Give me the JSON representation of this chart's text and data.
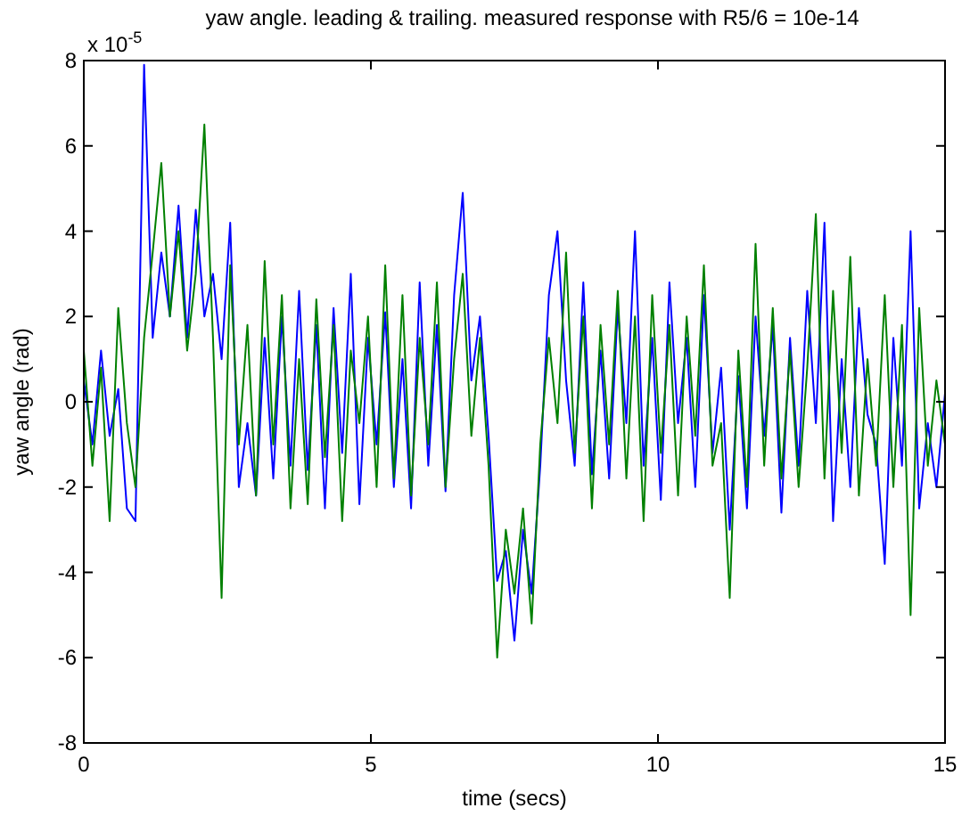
{
  "chart_data": {
    "type": "line",
    "title": "yaw angle. leading & trailing. measured response with R5/6 = 10e-14",
    "xlabel": "time (secs)",
    "ylabel": "yaw angle (rad)",
    "annotations": [
      "x 10$^{-5}$"
    ],
    "x": [
      0,
      0.15,
      0.3,
      0.45,
      0.6,
      0.75,
      0.9,
      1.05,
      1.2,
      1.35,
      1.5,
      1.65,
      1.8,
      1.95,
      2.1,
      2.25,
      2.4,
      2.55,
      2.7,
      2.85,
      3,
      3.15,
      3.3,
      3.45,
      3.6,
      3.75,
      3.9,
      4.05,
      4.2,
      4.35,
      4.5,
      4.65,
      4.8,
      4.95,
      5.1,
      5.25,
      5.4,
      5.55,
      5.7,
      5.85,
      6,
      6.15,
      6.3,
      6.45,
      6.6,
      6.75,
      6.9,
      7.05,
      7.2,
      7.35,
      7.5,
      7.65,
      7.8,
      7.95,
      8.1,
      8.25,
      8.4,
      8.55,
      8.7,
      8.85,
      9,
      9.15,
      9.3,
      9.45,
      9.6,
      9.75,
      9.9,
      10.05,
      10.2,
      10.35,
      10.5,
      10.65,
      10.8,
      10.95,
      11.1,
      11.25,
      11.4,
      11.55,
      11.7,
      11.85,
      12,
      12.15,
      12.3,
      12.45,
      12.6,
      12.75,
      12.9,
      13.05,
      13.2,
      13.35,
      13.5,
      13.65,
      13.8,
      13.95,
      14.1,
      14.25,
      14.4,
      14.55,
      14.7,
      14.85,
      15
    ],
    "series": [
      {
        "color": "#0000ff",
        "values": [
          0.5,
          -1,
          1.2,
          -0.8,
          0.3,
          -2.5,
          -2.8,
          7.9,
          1.5,
          3.5,
          2.0,
          4.6,
          1.5,
          4.5,
          2.0,
          3.0,
          1.0,
          4.2,
          -2.0,
          -0.5,
          -2.2,
          1.5,
          -1.8,
          2.0,
          -1.5,
          2.6,
          -1.6,
          1.8,
          -2.5,
          2.2,
          -1.2,
          3.0,
          -2.4,
          1.5,
          -1.0,
          2.1,
          -2.0,
          1.0,
          -2.5,
          2.8,
          -1.5,
          1.8,
          -2.1,
          2.5,
          4.9,
          0.5,
          2.0,
          -0.8,
          -4.2,
          -3.5,
          -5.6,
          -3.0,
          -4.5,
          -1.5,
          2.5,
          4.0,
          0.5,
          -1.5,
          2.8,
          -1.7,
          1.2,
          -1.8,
          2.2,
          -0.5,
          4.0,
          -1.5,
          1.5,
          -2.3,
          2.8,
          -0.5,
          1.5,
          -2.0,
          2.5,
          -1.2,
          0.8,
          -3.0,
          0.6,
          -2.5,
          2.0,
          -0.8,
          1.8,
          -2.6,
          1.5,
          -1.5,
          2.6,
          -0.5,
          4.2,
          -2.8,
          1.0,
          -2.0,
          2.2,
          -0.3,
          -1.0,
          -3.8,
          1.5,
          -1.5,
          4.0,
          -2.5,
          -0.5,
          -2.0,
          0.2
        ]
      },
      {
        "color": "#008000",
        "values": [
          1.2,
          -1.5,
          0.8,
          -2.8,
          2.2,
          -0.5,
          -2.0,
          1.5,
          3.5,
          5.6,
          2.0,
          4.0,
          1.2,
          3.0,
          6.5,
          1.5,
          -4.6,
          3.2,
          -1.0,
          1.8,
          -2.2,
          3.3,
          -1.0,
          2.5,
          -2.5,
          1.0,
          -2.4,
          2.4,
          -1.3,
          1.8,
          -2.8,
          1.2,
          -0.5,
          2.0,
          -2.0,
          3.2,
          -1.8,
          2.5,
          -2.2,
          1.5,
          -1.0,
          2.8,
          -2.0,
          1.0,
          3.0,
          -0.8,
          1.5,
          -1.5,
          -6.0,
          -3.0,
          -4.5,
          -2.5,
          -5.2,
          -1.0,
          1.5,
          -0.5,
          3.5,
          -1.2,
          2.0,
          -2.5,
          1.8,
          -1.0,
          2.6,
          -1.8,
          2.0,
          -2.8,
          2.5,
          -1.2,
          1.8,
          -2.2,
          2.0,
          -0.8,
          3.2,
          -1.5,
          -0.5,
          -4.6,
          1.2,
          -2.0,
          3.7,
          -1.5,
          2.2,
          -1.8,
          1.2,
          -2.0,
          0.8,
          4.4,
          -1.8,
          2.6,
          -1.2,
          3.4,
          -2.2,
          1.0,
          -1.5,
          2.5,
          -2.0,
          1.8,
          -5.0,
          2.2,
          -1.5,
          0.5,
          -1.0
        ]
      }
    ],
    "xlim": [
      0,
      15
    ],
    "xticks": [
      0,
      5,
      10,
      15
    ],
    "ylim": [
      -8,
      8
    ],
    "yticks": [
      -8,
      -6,
      -4,
      -2,
      0,
      2,
      4,
      6,
      8
    ]
  }
}
